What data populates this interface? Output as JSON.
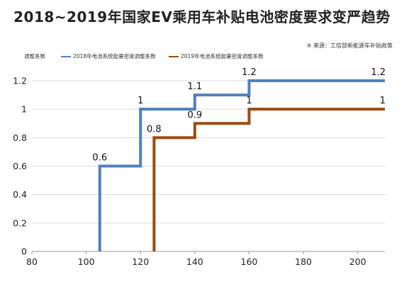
{
  "title": "2018~2019年国家EV乘用车补贴电池密度要求变严趋势",
  "source_note": "※ 来源：工信部新能源车补贴政策",
  "chart_data": {
    "type": "line",
    "step": true,
    "ylabel": "调整系数",
    "xlabel": "",
    "xlim": [
      80,
      210
    ],
    "ylim": [
      0,
      1.2
    ],
    "x_ticks": [
      80,
      100,
      120,
      140,
      160,
      180,
      200
    ],
    "y_ticks": [
      0,
      0.2,
      0.4,
      0.6,
      0.8,
      1,
      1.2
    ],
    "x_tick_labels": [
      "80",
      "100",
      "120",
      "140",
      "160",
      "180",
      "200"
    ],
    "y_tick_labels": [
      "0",
      "0.2",
      "0.4",
      "0.6",
      "0.8",
      "1",
      "1.2"
    ],
    "grid": "horizontal",
    "legend_position": "top",
    "series": [
      {
        "name": "2018年电池系统能量密度调整系数",
        "color": "#4f81bd",
        "x": [
          105,
          120,
          140,
          160,
          210
        ],
        "y": [
          0.6,
          1,
          1.1,
          1.2,
          1.2
        ],
        "labels": [
          "0.6",
          "1",
          "1.1",
          "1.2",
          "1.2"
        ]
      },
      {
        "name": "2019年电池系统能量密度调整系数",
        "color": "#9e4a0d",
        "x": [
          125,
          140,
          160,
          210
        ],
        "y": [
          0.8,
          0.9,
          1,
          1
        ],
        "labels": [
          "0.8",
          "0.9",
          "1",
          "1"
        ]
      }
    ]
  }
}
